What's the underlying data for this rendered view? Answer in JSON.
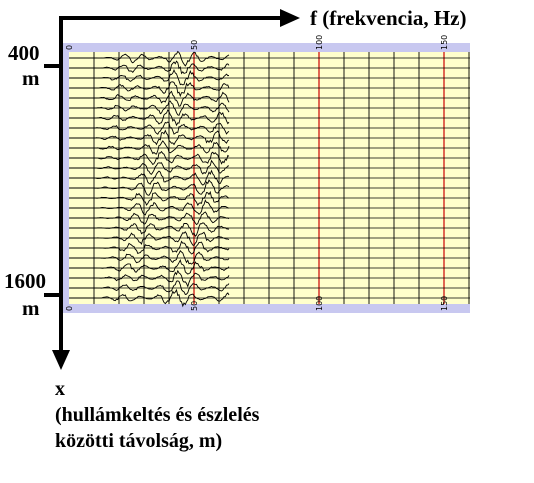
{
  "labels": {
    "f_axis": "f (frekvencia, Hz)",
    "top_depth_value": "400",
    "top_depth_unit": "m",
    "bottom_depth_value": "1600",
    "bottom_depth_unit": "m",
    "x_axis_symbol": "x",
    "x_axis_desc_line1": "(hullámkeltés és észlelés",
    "x_axis_desc_line2": "közötti távolság, m)"
  },
  "scale": {
    "frequency_ticks": [
      "0",
      "50",
      "100",
      "150"
    ]
  },
  "chart_data": {
    "type": "line",
    "xlim": [
      0,
      160
    ],
    "ylim": [
      400,
      1600
    ],
    "trace_count": 25,
    "grid": true,
    "signal_band_hz": [
      10,
      80
    ],
    "colors": {
      "background": "#ffffcc",
      "frame_bars": "#c8c8f0",
      "grid_lines": "#000000",
      "highlight_lines": "#cc0000",
      "traces": "#000000"
    }
  }
}
